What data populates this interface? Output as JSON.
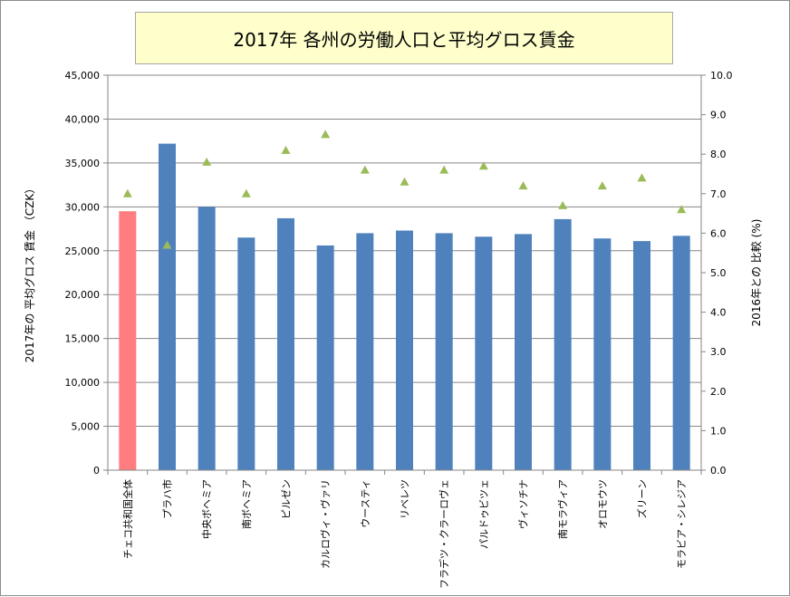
{
  "chart_data": {
    "type": "bar",
    "title": "2017年 各州の労働人口と平均グロス賃金",
    "y_left_label": "2017年の 平均グロス 賃金 （CZK）",
    "y_right_label": "2016年との 比較 (%)",
    "y_left_lim": [
      0,
      45000
    ],
    "y_left_ticks": [
      "0",
      "5,000",
      "10,000",
      "15,000",
      "20,000",
      "25,000",
      "30,000",
      "35,000",
      "40,000",
      "45,000"
    ],
    "y_right_lim": [
      0,
      10
    ],
    "y_right_ticks": [
      "0.0",
      "1.0",
      "2.0",
      "3.0",
      "4.0",
      "5.0",
      "6.0",
      "7.0",
      "8.0",
      "9.0",
      "10.0"
    ],
    "grid": "horizontal",
    "categories": [
      "チェコ共和国全体",
      "プラハ市",
      "中央ボヘミア",
      "南ボヘミア",
      "ピルゼン",
      "カルロヴィ・ヴァリ",
      "ウースティ",
      "リベレツ",
      "フラデツ・クラーロヴェ",
      "パルドゥビツェ",
      "ヴィソチナ",
      "南モラヴィア",
      "オロモウツ",
      "ズリーン",
      "モラビア・シレジア"
    ],
    "bar_values": [
      29500,
      37200,
      30000,
      26500,
      28700,
      25600,
      27000,
      27300,
      27000,
      26600,
      26900,
      28600,
      26400,
      26100,
      26700
    ],
    "marker_values": [
      7.0,
      5.7,
      7.8,
      7.0,
      8.1,
      8.5,
      7.6,
      7.3,
      7.6,
      7.7,
      7.2,
      6.7,
      7.2,
      7.4,
      6.6
    ],
    "colors": {
      "highlight_bar": "#ff7c80",
      "bar": "#4f81bd",
      "marker": "#9bbb59",
      "grid": "#868686",
      "title_bg": "#ffffcc"
    }
  }
}
